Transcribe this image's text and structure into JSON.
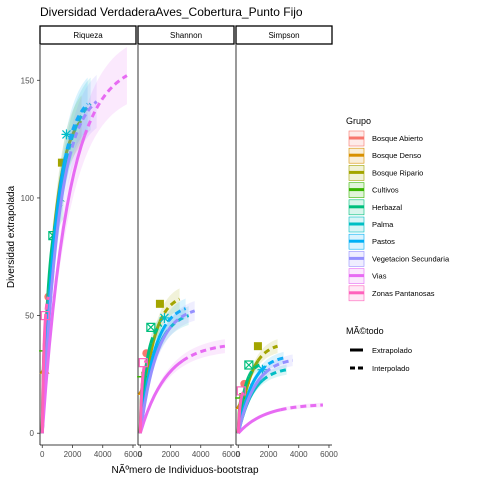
{
  "chart_data": {
    "type": "line",
    "title": "Diversidad VerdaderaAves_Cobertura_Punto Fijo",
    "xlabel": "NÃºmero de Individuos-bootstrap",
    "ylabel": "Diversidad extrapolada",
    "panels": [
      "Riqueza",
      "Shannon",
      "Simpson"
    ],
    "x_ticks": [
      "0",
      "2000",
      "4000",
      "6000"
    ],
    "x_values": [
      0,
      2000,
      4000,
      6000
    ],
    "xlim": [
      -150,
      6200
    ],
    "y_ticks": [
      "0",
      "50",
      "100",
      "150"
    ],
    "y_values": [
      0,
      50,
      100,
      150
    ],
    "ylim": [
      -5,
      165
    ],
    "legend": {
      "title": "Grupo",
      "placement": "right",
      "groups": [
        {
          "name": "Bosque Abierto",
          "color": "#F8766D",
          "shape": "circle"
        },
        {
          "name": "Bosque Denso",
          "color": "#D89000",
          "shape": "triangle"
        },
        {
          "name": "Bosque Ripario",
          "color": "#A3A500",
          "shape": "square"
        },
        {
          "name": "Cultivos",
          "color": "#39B600",
          "shape": "plus"
        },
        {
          "name": "Herbazal",
          "color": "#00BF7D",
          "shape": "box-x"
        },
        {
          "name": "Palma",
          "color": "#00BFC4",
          "shape": "asterisk"
        },
        {
          "name": "Pastos",
          "color": "#00B0F6",
          "shape": "none"
        },
        {
          "name": "Vegetacion Secundaria",
          "color": "#9590FF",
          "shape": "none"
        },
        {
          "name": "Vias",
          "color": "#E76BF3",
          "shape": "none"
        },
        {
          "name": "Zonas Pantanosas",
          "color": "#FF62BC",
          "shape": "box"
        }
      ]
    },
    "method_legend": {
      "title": "MÃ©todo",
      "items": [
        "Extrapolado",
        "Interpolado"
      ]
    },
    "series": [
      {
        "panel": "Riqueza",
        "group": "Bosque Abierto",
        "observed_n": 400,
        "observed_y": 58,
        "end_n": 800,
        "end_y": 70
      },
      {
        "panel": "Riqueza",
        "group": "Bosque Denso",
        "observed_n": 150,
        "observed_y": 27,
        "end_n": 300,
        "end_y": 35
      },
      {
        "panel": "Riqueza",
        "group": "Bosque Ripario",
        "observed_n": 1300,
        "observed_y": 115,
        "end_n": 2600,
        "end_y": 133
      },
      {
        "panel": "Riqueza",
        "group": "Cultivos",
        "observed_n": 120,
        "observed_y": 35,
        "end_n": 240,
        "end_y": 43
      },
      {
        "panel": "Riqueza",
        "group": "Herbazal",
        "observed_n": 700,
        "observed_y": 84,
        "end_n": 1400,
        "end_y": 99
      },
      {
        "panel": "Riqueza",
        "group": "Palma",
        "observed_n": 1600,
        "observed_y": 127,
        "end_n": 3200,
        "end_y": 140
      },
      {
        "panel": "Riqueza",
        "group": "Pastos",
        "observed_n": 1500,
        "observed_y": 113,
        "end_n": 3000,
        "end_y": 140
      },
      {
        "panel": "Riqueza",
        "group": "Vegetacion Secundaria",
        "observed_n": 1800,
        "observed_y": 126,
        "end_n": 3600,
        "end_y": 141
      },
      {
        "panel": "Riqueza",
        "group": "Vias",
        "observed_n": 2800,
        "observed_y": 130,
        "end_n": 5600,
        "end_y": 152
      },
      {
        "panel": "Riqueza",
        "group": "Zonas Pantanosas",
        "observed_n": 200,
        "observed_y": 50,
        "end_n": 400,
        "end_y": 58
      },
      {
        "panel": "Shannon",
        "group": "Bosque Abierto",
        "observed_n": 400,
        "observed_y": 34,
        "end_n": 800,
        "end_y": 35
      },
      {
        "panel": "Shannon",
        "group": "Bosque Denso",
        "observed_n": 150,
        "observed_y": 18,
        "end_n": 300,
        "end_y": 18
      },
      {
        "panel": "Shannon",
        "group": "Bosque Ripario",
        "observed_n": 1300,
        "observed_y": 55,
        "end_n": 2600,
        "end_y": 57
      },
      {
        "panel": "Shannon",
        "group": "Cultivos",
        "observed_n": 120,
        "observed_y": 24,
        "end_n": 240,
        "end_y": 24
      },
      {
        "panel": "Shannon",
        "group": "Herbazal",
        "observed_n": 700,
        "observed_y": 45,
        "end_n": 1400,
        "end_y": 46
      },
      {
        "panel": "Shannon",
        "group": "Palma",
        "observed_n": 1600,
        "observed_y": 49,
        "end_n": 3200,
        "end_y": 50
      },
      {
        "panel": "Shannon",
        "group": "Pastos",
        "observed_n": 1500,
        "observed_y": 52,
        "end_n": 3000,
        "end_y": 53
      },
      {
        "panel": "Shannon",
        "group": "Vegetacion Secundaria",
        "observed_n": 1800,
        "observed_y": 51,
        "end_n": 3600,
        "end_y": 52
      },
      {
        "panel": "Shannon",
        "group": "Vias",
        "observed_n": 2800,
        "observed_y": 36,
        "end_n": 5600,
        "end_y": 37
      },
      {
        "panel": "Shannon",
        "group": "Zonas Pantanosas",
        "observed_n": 200,
        "observed_y": 30,
        "end_n": 400,
        "end_y": 31
      },
      {
        "panel": "Simpson",
        "group": "Bosque Abierto",
        "observed_n": 400,
        "observed_y": 21,
        "end_n": 800,
        "end_y": 21
      },
      {
        "panel": "Simpson",
        "group": "Bosque Denso",
        "observed_n": 150,
        "observed_y": 12,
        "end_n": 300,
        "end_y": 12
      },
      {
        "panel": "Simpson",
        "group": "Bosque Ripario",
        "observed_n": 1300,
        "observed_y": 37,
        "end_n": 2600,
        "end_y": 37
      },
      {
        "panel": "Simpson",
        "group": "Cultivos",
        "observed_n": 120,
        "observed_y": 15,
        "end_n": 240,
        "end_y": 15
      },
      {
        "panel": "Simpson",
        "group": "Herbazal",
        "observed_n": 700,
        "observed_y": 29,
        "end_n": 1400,
        "end_y": 29
      },
      {
        "panel": "Simpson",
        "group": "Palma",
        "observed_n": 1600,
        "observed_y": 27,
        "end_n": 3200,
        "end_y": 27
      },
      {
        "panel": "Simpson",
        "group": "Pastos",
        "observed_n": 1500,
        "observed_y": 31,
        "end_n": 3000,
        "end_y": 32
      },
      {
        "panel": "Simpson",
        "group": "Vegetacion Secundaria",
        "observed_n": 1800,
        "observed_y": 30,
        "end_n": 3600,
        "end_y": 31
      },
      {
        "panel": "Simpson",
        "group": "Vias",
        "observed_n": 2800,
        "observed_y": 12,
        "end_n": 5600,
        "end_y": 12
      },
      {
        "panel": "Simpson",
        "group": "Zonas Pantanosas",
        "observed_n": 200,
        "observed_y": 18,
        "end_n": 400,
        "end_y": 18
      }
    ]
  }
}
